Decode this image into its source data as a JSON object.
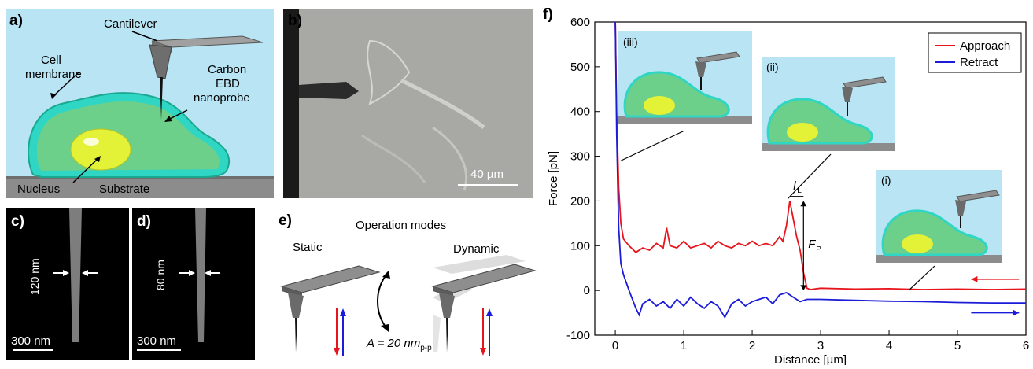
{
  "panel_a": {
    "label": "a)",
    "cantilever": "Cantilever",
    "cell_membrane": [
      "Cell",
      "membrane"
    ],
    "probe": [
      "Carbon",
      "EBD",
      "nanoprobe"
    ],
    "nucleus": "Nucleus",
    "substrate": "Substrate"
  },
  "panel_b": {
    "label": "b)",
    "scalebar": "40 µm"
  },
  "panel_c": {
    "label": "c)",
    "width": "120 nm",
    "scalebar": "300 nm"
  },
  "panel_d": {
    "label": "d)",
    "width": "80 nm",
    "scalebar": "300 nm"
  },
  "panel_e": {
    "label": "e)",
    "title": "Operation modes",
    "static": "Static",
    "dynamic": "Dynamic",
    "amplitude": "A = 20 nm",
    "amplitude_sub": "p-p"
  },
  "panel_f": {
    "label": "f)",
    "inset_labels": [
      "(iii)",
      "(ii)",
      "(i)"
    ],
    "lL": "l",
    "lL_sub": "L",
    "FP": "F",
    "FP_sub": "P"
  },
  "chart_data": {
    "type": "line",
    "xlabel": "Distance [µm]",
    "ylabel": "Force [pN]",
    "xlim": [
      -0.3,
      6
    ],
    "ylim": [
      -100,
      600
    ],
    "xticks": [
      0,
      1,
      2,
      3,
      4,
      5,
      6
    ],
    "yticks": [
      -100,
      0,
      100,
      200,
      300,
      400,
      500,
      600
    ],
    "legend_position": "top-right",
    "series": [
      {
        "name": "Approach",
        "color": "#e8141c",
        "x": [
          0.0,
          0.02,
          0.05,
          0.08,
          0.12,
          0.2,
          0.3,
          0.4,
          0.5,
          0.6,
          0.7,
          0.75,
          0.8,
          0.9,
          1.0,
          1.1,
          1.2,
          1.3,
          1.4,
          1.5,
          1.6,
          1.7,
          1.8,
          1.9,
          2.0,
          2.1,
          2.2,
          2.3,
          2.4,
          2.45,
          2.5,
          2.55,
          2.6,
          2.65,
          2.7,
          2.75,
          2.8,
          2.85,
          3.0,
          3.5,
          4.0,
          4.5,
          5.0,
          5.5,
          6.0
        ],
        "y": [
          600,
          400,
          230,
          150,
          115,
          100,
          85,
          95,
          90,
          105,
          95,
          140,
          100,
          95,
          110,
          95,
          100,
          105,
          95,
          110,
          100,
          95,
          105,
          100,
          110,
          100,
          105,
          100,
          120,
          110,
          145,
          200,
          160,
          120,
          90,
          40,
          5,
          2,
          5,
          3,
          4,
          2,
          3,
          2,
          3
        ]
      },
      {
        "name": "Retract",
        "color": "#1c1cd8",
        "x": [
          0.0,
          0.02,
          0.05,
          0.08,
          0.12,
          0.2,
          0.3,
          0.35,
          0.4,
          0.5,
          0.6,
          0.7,
          0.8,
          0.9,
          1.0,
          1.1,
          1.2,
          1.3,
          1.4,
          1.5,
          1.6,
          1.7,
          1.8,
          1.9,
          2.0,
          2.1,
          2.2,
          2.3,
          2.4,
          2.5,
          2.6,
          2.7,
          2.8,
          3.0,
          3.5,
          4.0,
          4.5,
          5.0,
          5.5,
          6.0
        ],
        "y": [
          600,
          350,
          140,
          60,
          35,
          0,
          -40,
          -55,
          -30,
          -20,
          -35,
          -25,
          -40,
          -20,
          -35,
          -15,
          -30,
          -40,
          -25,
          -35,
          -60,
          -30,
          -20,
          -35,
          -25,
          -20,
          -15,
          -30,
          -10,
          -5,
          -15,
          -25,
          -20,
          -20,
          -22,
          -24,
          -25,
          -27,
          -28,
          -28
        ]
      }
    ]
  }
}
